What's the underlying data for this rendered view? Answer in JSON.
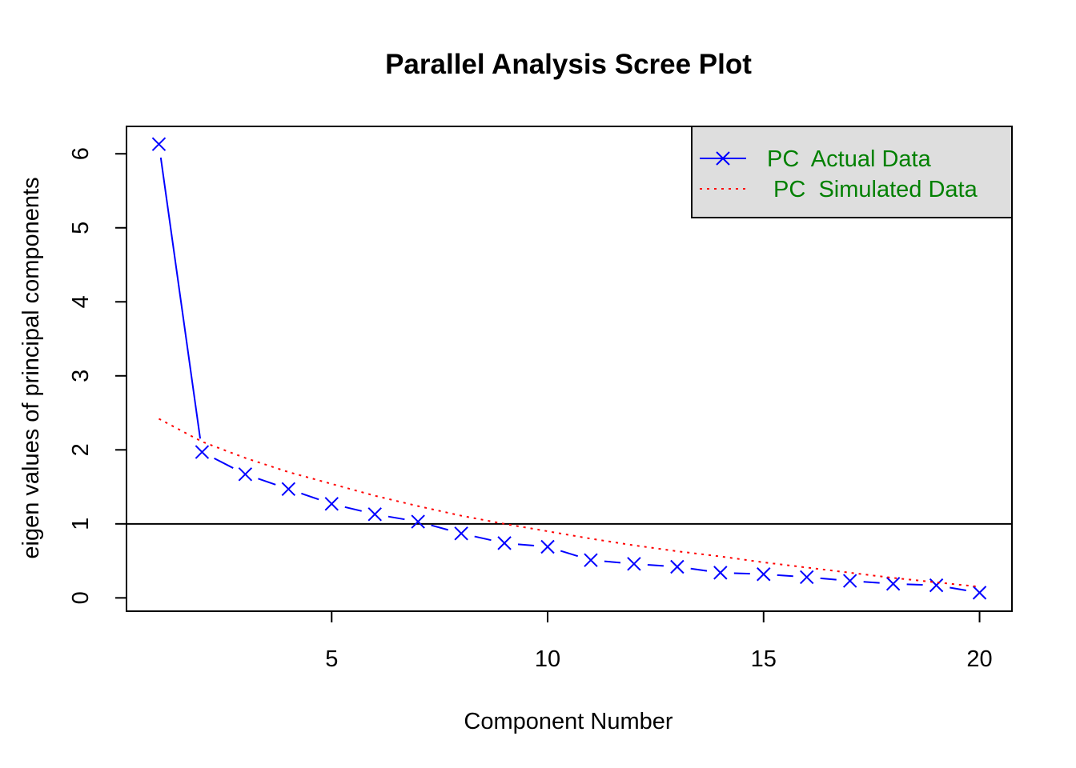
{
  "chart_data": {
    "type": "line",
    "title": "Parallel Analysis Scree Plot",
    "xlabel": "Component Number",
    "ylabel": "eigen values of principal components",
    "xlim": [
      0.25,
      20.75
    ],
    "ylim": [
      -0.18,
      6.37
    ],
    "xticks": [
      5,
      10,
      15,
      20
    ],
    "yticks": [
      0,
      1,
      2,
      3,
      4,
      5,
      6
    ],
    "reference_line_y": 1,
    "x": [
      1,
      2,
      3,
      4,
      5,
      6,
      7,
      8,
      9,
      10,
      11,
      12,
      13,
      14,
      15,
      16,
      17,
      18,
      19,
      20
    ],
    "series": [
      {
        "name": "PC  Actual Data",
        "color": "#0000ff",
        "line": "dashed",
        "marker": "x",
        "values": [
          6.13,
          1.97,
          1.67,
          1.47,
          1.27,
          1.13,
          1.03,
          0.87,
          0.74,
          0.69,
          0.51,
          0.46,
          0.42,
          0.34,
          0.32,
          0.28,
          0.23,
          0.19,
          0.17,
          0.07
        ]
      },
      {
        "name": " PC  Simulated Data",
        "color": "#ff0000",
        "line": "dotted",
        "marker": "none",
        "values": [
          2.42,
          2.11,
          1.89,
          1.7,
          1.54,
          1.38,
          1.24,
          1.11,
          1.0,
          0.9,
          0.8,
          0.71,
          0.63,
          0.56,
          0.48,
          0.41,
          0.34,
          0.27,
          0.21,
          0.15
        ]
      }
    ],
    "legend": {
      "position": "top-right",
      "background": "#dedede",
      "text_color": "#008000"
    }
  }
}
